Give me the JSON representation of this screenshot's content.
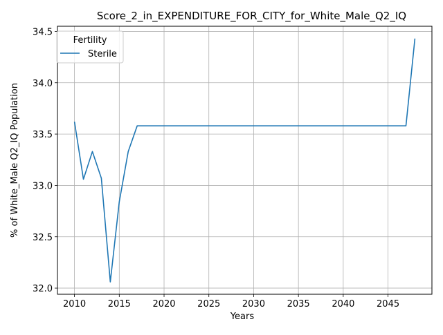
{
  "chart_data": {
    "type": "line",
    "title": "Score_2_in_EXPENDITURE_FOR_CITY_for_White_Male_Q2_IQ",
    "xlabel": "Years",
    "ylabel": "% of White_Male Q2_IQ Population",
    "xlim": [
      2008.1,
      2049.9
    ],
    "ylim": [
      31.94,
      34.55
    ],
    "xticks": [
      2010,
      2015,
      2020,
      2025,
      2030,
      2035,
      2040,
      2045
    ],
    "yticks": [
      32.0,
      32.5,
      33.0,
      33.5,
      34.0,
      34.5
    ],
    "ytick_labels": [
      "32.0",
      "32.5",
      "33.0",
      "33.5",
      "34.0",
      "34.5"
    ],
    "grid": true,
    "legend": {
      "title": "Fertility",
      "placement": "top-left"
    },
    "series": [
      {
        "name": "Sterile",
        "color": "#1f77b4",
        "x": [
          2010,
          2011,
          2012,
          2013,
          2014,
          2015,
          2016,
          2017,
          2018,
          2019,
          2020,
          2021,
          2022,
          2023,
          2024,
          2025,
          2026,
          2027,
          2028,
          2029,
          2030,
          2031,
          2032,
          2033,
          2034,
          2035,
          2036,
          2037,
          2038,
          2039,
          2040,
          2041,
          2042,
          2043,
          2044,
          2045,
          2046,
          2047,
          2048
        ],
        "y": [
          33.62,
          33.06,
          33.33,
          33.07,
          32.06,
          32.84,
          33.33,
          33.58,
          33.58,
          33.58,
          33.58,
          33.58,
          33.58,
          33.58,
          33.58,
          33.58,
          33.58,
          33.58,
          33.58,
          33.58,
          33.58,
          33.58,
          33.58,
          33.58,
          33.58,
          33.58,
          33.58,
          33.58,
          33.58,
          33.58,
          33.58,
          33.58,
          33.58,
          33.58,
          33.58,
          33.58,
          33.58,
          33.58,
          34.43
        ]
      }
    ]
  }
}
